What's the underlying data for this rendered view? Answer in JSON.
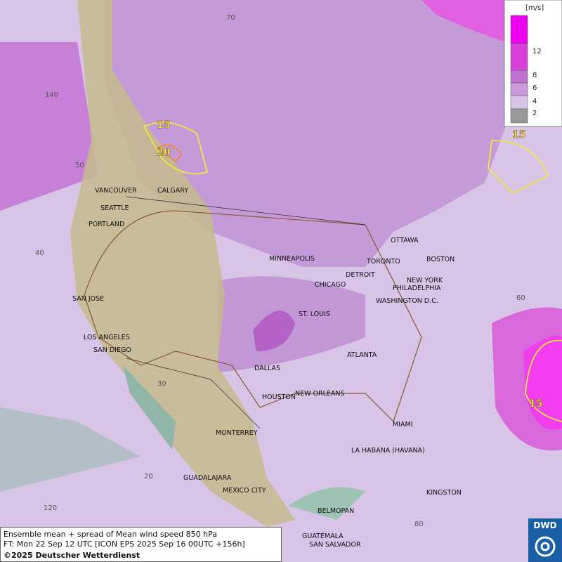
{
  "legend": {
    "unit": "[m/s]",
    "levels": [
      "12",
      "8",
      "6",
      "4",
      "2"
    ]
  },
  "grid_labels": [
    "70",
    "140",
    "50",
    "40",
    "30",
    "20",
    "120",
    "60",
    "80"
  ],
  "contour_labels": [
    "15",
    "20",
    "15",
    "15"
  ],
  "cities": [
    "VANCOUVER",
    "CALGARY",
    "SEATTLE",
    "PORTLAND",
    "MINNEAPOLIS",
    "OTTAWA",
    "TORONTO",
    "BOSTON",
    "DETROIT",
    "NEW YORK",
    "CHICAGO",
    "PHILADELPHIA",
    "WASHINGTON D.C.",
    "ST. LOUIS",
    "SAN JOSE",
    "LOS ANGELES",
    "SAN DIEGO",
    "ATLANTA",
    "DALLAS",
    "NEW ORLEANS",
    "HOUSTON",
    "MIAMI",
    "MONTERREY",
    "LA HABANA (HAVANA)",
    "GUADALAJARA",
    "MEXICO CITY",
    "KINGSTON",
    "BELMOPAN",
    "GUATEMALA",
    "SAN SALVADOR"
  ],
  "caption": {
    "line1": "Ensemble mean + spread of Mean wind speed 850 hPa",
    "line2": "FT: Mon 22 Sep 12 UTC [ICON EPS 2025 Sep 16 00UTC +156h]",
    "line3": "©2025 Deutscher Wetterdienst"
  },
  "logo": "DWD"
}
